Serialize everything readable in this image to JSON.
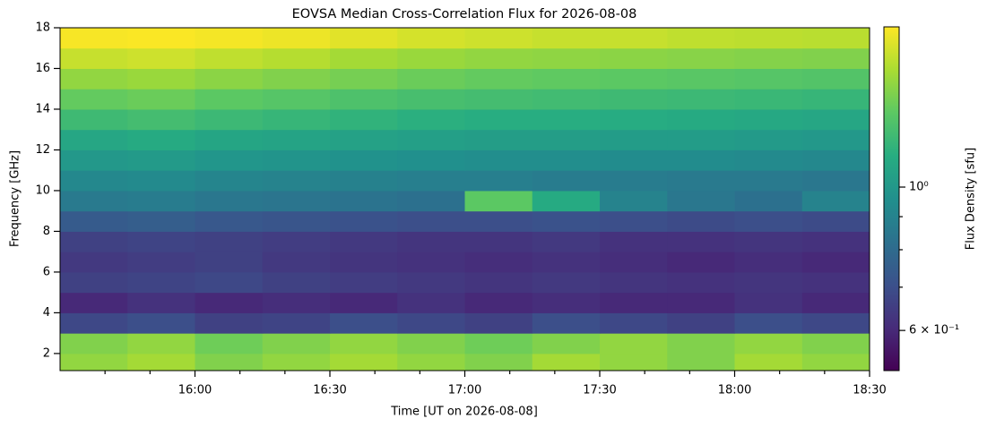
{
  "chart_data": {
    "type": "heatmap",
    "title": "EOVSA Median Cross-Correlation Flux for 2026-08-08",
    "xlabel": "Time [UT on 2026-08-08]",
    "ylabel": "Frequency [GHz]",
    "colorbar_label": "Flux Density [sfu]",
    "colormap": "viridis",
    "log_color": true,
    "xlim": [
      930,
      1110
    ],
    "xticks": [
      {
        "value": 960,
        "label": "16:00"
      },
      {
        "value": 990,
        "label": "16:30"
      },
      {
        "value": 1020,
        "label": "17:00"
      },
      {
        "value": 1050,
        "label": "17:30"
      },
      {
        "value": 1080,
        "label": "18:00"
      },
      {
        "value": 1110,
        "label": "18:30"
      }
    ],
    "xticks_minor": [
      940,
      950,
      970,
      980,
      1000,
      1010,
      1030,
      1040,
      1060,
      1070,
      1090,
      1100
    ],
    "ylim": [
      1.16,
      18
    ],
    "yticks": [
      2,
      4,
      6,
      8,
      10,
      12,
      14,
      16,
      18
    ],
    "clim": [
      0.52,
      1.77
    ],
    "cticks": [
      {
        "value": 0.6,
        "label": "6 × 10⁻¹"
      },
      {
        "value": 1,
        "label": "10⁰"
      }
    ],
    "cticks_minor": [
      0.7,
      0.8,
      0.9
    ],
    "xbins": [
      930,
      945,
      960,
      975,
      990,
      1005,
      1020,
      1035,
      1050,
      1065,
      1080,
      1095,
      1110
    ],
    "ybins": [
      1.16,
      2,
      3,
      4,
      5,
      6,
      7,
      8,
      9,
      10,
      11,
      12,
      13,
      14,
      15,
      16,
      17,
      18
    ],
    "z": [
      [
        1.45,
        1.5,
        1.4,
        1.45,
        1.5,
        1.45,
        1.4,
        1.5,
        1.45,
        1.4,
        1.5,
        1.45
      ],
      [
        1.4,
        1.45,
        1.35,
        1.4,
        1.45,
        1.4,
        1.35,
        1.4,
        1.45,
        1.4,
        1.45,
        1.4
      ],
      [
        0.68,
        0.7,
        0.66,
        0.67,
        0.7,
        0.68,
        0.66,
        0.7,
        0.68,
        0.66,
        0.7,
        0.68
      ],
      [
        0.6,
        0.62,
        0.6,
        0.61,
        0.6,
        0.62,
        0.6,
        0.61,
        0.6,
        0.6,
        0.62,
        0.6
      ],
      [
        0.66,
        0.67,
        0.68,
        0.66,
        0.65,
        0.64,
        0.63,
        0.64,
        0.63,
        0.62,
        0.63,
        0.62
      ],
      [
        0.64,
        0.65,
        0.66,
        0.64,
        0.63,
        0.62,
        0.61,
        0.62,
        0.61,
        0.6,
        0.61,
        0.6
      ],
      [
        0.66,
        0.67,
        0.66,
        0.65,
        0.64,
        0.63,
        0.63,
        0.64,
        0.62,
        0.62,
        0.63,
        0.62
      ],
      [
        0.74,
        0.75,
        0.73,
        0.72,
        0.71,
        0.7,
        0.7,
        0.71,
        0.7,
        0.69,
        0.7,
        0.69
      ],
      [
        0.86,
        0.87,
        0.85,
        0.84,
        0.83,
        0.82,
        1.3,
        1.1,
        0.9,
        0.85,
        0.82,
        0.9
      ],
      [
        0.92,
        0.93,
        0.91,
        0.9,
        0.89,
        0.88,
        0.88,
        0.87,
        0.87,
        0.86,
        0.86,
        0.85
      ],
      [
        1.0,
        1.01,
        0.99,
        0.98,
        0.97,
        0.96,
        0.95,
        0.95,
        0.94,
        0.94,
        0.93,
        0.92
      ],
      [
        1.08,
        1.1,
        1.07,
        1.06,
        1.05,
        1.04,
        1.03,
        1.03,
        1.02,
        1.02,
        1.01,
        1.0
      ],
      [
        1.2,
        1.22,
        1.19,
        1.17,
        1.15,
        1.13,
        1.12,
        1.12,
        1.11,
        1.1,
        1.09,
        1.08
      ],
      [
        1.32,
        1.34,
        1.3,
        1.28,
        1.25,
        1.23,
        1.22,
        1.21,
        1.2,
        1.19,
        1.18,
        1.17
      ],
      [
        1.45,
        1.47,
        1.43,
        1.4,
        1.37,
        1.34,
        1.32,
        1.31,
        1.3,
        1.29,
        1.28,
        1.27
      ],
      [
        1.6,
        1.62,
        1.58,
        1.55,
        1.5,
        1.47,
        1.45,
        1.44,
        1.43,
        1.42,
        1.41,
        1.4
      ],
      [
        1.75,
        1.76,
        1.74,
        1.72,
        1.68,
        1.64,
        1.62,
        1.6,
        1.6,
        1.58,
        1.57,
        1.56
      ]
    ]
  }
}
